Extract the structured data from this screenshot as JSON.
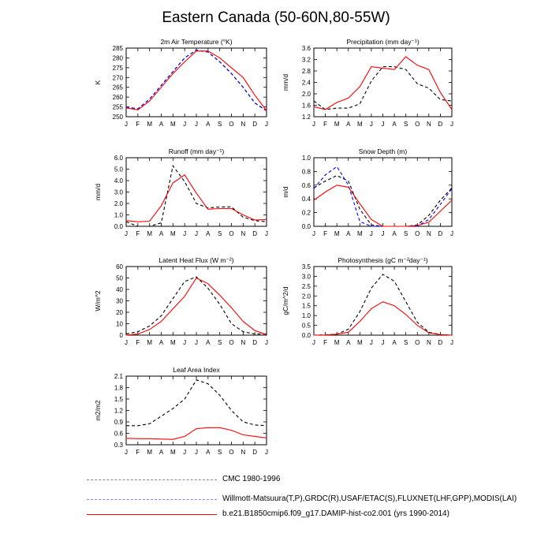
{
  "title": "Eastern Canada (50-60N,80-55W)",
  "months": [
    "J",
    "F",
    "M",
    "A",
    "M",
    "J",
    "J",
    "A",
    "S",
    "O",
    "N",
    "D",
    "J"
  ],
  "colors": {
    "cmc": "#000000",
    "obs": "#0000ff",
    "model": "#ff0000"
  },
  "legend": [
    {
      "label": "CMC 1980-1996",
      "color": "#000000",
      "style": "dashed",
      "series": "cmc"
    },
    {
      "label": "Willmott-Matsuura(T,P),GRDC(R),USAF/ETAC(S),FLUXNET(LHF,GPP),MODIS(LAI)",
      "color": "#0000ff",
      "style": "dashed",
      "series": "obs"
    },
    {
      "label": "b.e21.B1850cmip6.f09_g17.DAMIP-hist-co2.001 (yrs 1990-2014)",
      "color": "#ff0000",
      "style": "solid",
      "series": "model"
    }
  ],
  "chart_data": [
    {
      "type": "line",
      "title": "2m Air Temperature (°K)",
      "ylabel": "K",
      "ylim": [
        250,
        285
      ],
      "yticks": [
        "250",
        "255",
        "260",
        "265",
        "270",
        "275",
        "280",
        "285"
      ],
      "x": [
        "J",
        "F",
        "M",
        "A",
        "M",
        "J",
        "J",
        "A",
        "S",
        "O",
        "N",
        "D",
        "J"
      ],
      "series": [
        {
          "key": "cmc",
          "values": [
            255,
            254,
            259,
            266,
            273,
            280,
            284,
            283,
            278,
            272,
            265,
            257,
            253
          ]
        },
        {
          "key": "obs",
          "values": [
            255,
            254,
            259,
            266,
            273,
            280,
            284,
            283,
            278,
            272,
            265,
            257,
            253
          ]
        },
        {
          "key": "model",
          "values": [
            254.5,
            253.5,
            258,
            265,
            272,
            278,
            283.5,
            283.5,
            280,
            275,
            270,
            261,
            253
          ]
        }
      ]
    },
    {
      "type": "line",
      "title": "Precipitation (mm day⁻¹)",
      "ylabel": "mm/d",
      "ylim": [
        1.2,
        3.6
      ],
      "yticks": [
        "1.2",
        "1.6",
        "2.0",
        "2.4",
        "2.8",
        "3.2",
        "3.6"
      ],
      "x": [
        "J",
        "F",
        "M",
        "A",
        "M",
        "J",
        "J",
        "A",
        "S",
        "O",
        "N",
        "D",
        "J"
      ],
      "series": [
        {
          "key": "cmc",
          "values": [
            1.75,
            1.45,
            1.5,
            1.5,
            1.65,
            2.45,
            2.95,
            2.95,
            2.85,
            2.35,
            2.2,
            1.8,
            1.75
          ]
        },
        {
          "key": "model",
          "values": [
            1.55,
            1.45,
            1.7,
            1.85,
            2.25,
            2.95,
            2.9,
            2.85,
            3.3,
            3.0,
            2.85,
            2.05,
            1.45
          ]
        }
      ]
    },
    {
      "type": "line",
      "title": "Runoff (mm day⁻¹)",
      "ylabel": "mm/d",
      "ylim": [
        0,
        6
      ],
      "yticks": [
        "0.0",
        "1.0",
        "2.0",
        "3.0",
        "4.0",
        "5.0",
        "6.0"
      ],
      "x": [
        "J",
        "F",
        "M",
        "A",
        "M",
        "J",
        "J",
        "A",
        "S",
        "O",
        "N",
        "D",
        "J"
      ],
      "series": [
        {
          "key": "cmc",
          "values": [
            0.4,
            0.0,
            0.0,
            0.3,
            5.3,
            3.9,
            2.0,
            1.6,
            1.7,
            1.7,
            0.8,
            0.5,
            0.4
          ]
        },
        {
          "key": "model",
          "values": [
            0.5,
            0.4,
            0.45,
            1.8,
            3.8,
            4.5,
            2.9,
            1.5,
            1.55,
            1.55,
            1.0,
            0.55,
            0.6
          ]
        }
      ]
    },
    {
      "type": "line",
      "title": "Snow Depth (m)",
      "ylabel": "m/d",
      "ylim": [
        0,
        1
      ],
      "yticks": [
        "0.0",
        "0.2",
        "0.4",
        "0.6",
        "0.8",
        "1.0"
      ],
      "x": [
        "J",
        "F",
        "M",
        "A",
        "M",
        "J",
        "J",
        "A",
        "S",
        "O",
        "N",
        "D",
        "J"
      ],
      "series": [
        {
          "key": "cmc",
          "values": [
            0.56,
            0.66,
            0.74,
            0.66,
            0.25,
            0.02,
            0.0,
            0.0,
            0.0,
            0.02,
            0.16,
            0.38,
            0.56
          ]
        },
        {
          "key": "obs",
          "values": [
            0.55,
            0.75,
            0.87,
            0.6,
            0.07,
            0.0,
            0.0,
            0.0,
            0.0,
            0.0,
            0.1,
            0.32,
            0.55
          ]
        },
        {
          "key": "model",
          "values": [
            0.38,
            0.5,
            0.6,
            0.57,
            0.33,
            0.1,
            0.0,
            0.0,
            0.0,
            0.01,
            0.06,
            0.22,
            0.38
          ]
        }
      ]
    },
    {
      "type": "line",
      "title": "Latent Heat Flux (W m⁻²)",
      "ylabel": "W/m^2",
      "ylim": [
        0,
        60
      ],
      "yticks": [
        "0",
        "10",
        "20",
        "30",
        "40",
        "50",
        "60"
      ],
      "x": [
        "J",
        "F",
        "M",
        "A",
        "M",
        "J",
        "J",
        "A",
        "S",
        "O",
        "N",
        "D",
        "J"
      ],
      "series": [
        {
          "key": "cmc",
          "values": [
            1,
            3,
            8,
            17,
            32,
            47,
            51,
            41,
            27,
            10,
            3,
            1,
            1
          ]
        },
        {
          "key": "model",
          "values": [
            0,
            1,
            5,
            12,
            23,
            34,
            50,
            45,
            35,
            24,
            12,
            4,
            0.5
          ]
        }
      ]
    },
    {
      "type": "line",
      "title": "Photosynthesis (gC m⁻²day⁻¹)",
      "ylabel": "gC/m^2/d",
      "ylim": [
        0,
        3.5
      ],
      "yticks": [
        "0.0",
        "0.5",
        "1.0",
        "1.5",
        "2.0",
        "2.5",
        "3.0",
        "3.5"
      ],
      "x": [
        "J",
        "F",
        "M",
        "A",
        "M",
        "J",
        "J",
        "A",
        "S",
        "O",
        "N",
        "D",
        "J"
      ],
      "series": [
        {
          "key": "cmc",
          "values": [
            0.0,
            0.02,
            0.05,
            0.3,
            1.2,
            2.4,
            3.1,
            2.75,
            1.7,
            0.65,
            0.15,
            0.03,
            0.0
          ]
        },
        {
          "key": "model",
          "values": [
            0.0,
            0.01,
            0.05,
            0.15,
            0.7,
            1.35,
            1.7,
            1.5,
            1.05,
            0.5,
            0.12,
            0.03,
            0.0
          ]
        }
      ]
    },
    {
      "type": "line",
      "title": "Leaf Area Index",
      "ylabel": "m2/m2",
      "ylim": [
        0.3,
        2.1
      ],
      "yticks": [
        "0.3",
        "0.6",
        "0.9",
        "1.2",
        "1.5",
        "1.8",
        "2.1"
      ],
      "x": [
        "J",
        "F",
        "M",
        "A",
        "M",
        "J",
        "J",
        "A",
        "S",
        "O",
        "N",
        "D",
        "J"
      ],
      "series": [
        {
          "key": "cmc",
          "values": [
            0.8,
            0.8,
            0.85,
            1.05,
            1.25,
            1.5,
            2.0,
            1.9,
            1.6,
            1.2,
            0.9,
            0.82,
            0.8
          ]
        },
        {
          "key": "model",
          "values": [
            0.47,
            0.46,
            0.46,
            0.45,
            0.44,
            0.52,
            0.72,
            0.75,
            0.75,
            0.68,
            0.56,
            0.52,
            0.48
          ]
        }
      ]
    }
  ]
}
